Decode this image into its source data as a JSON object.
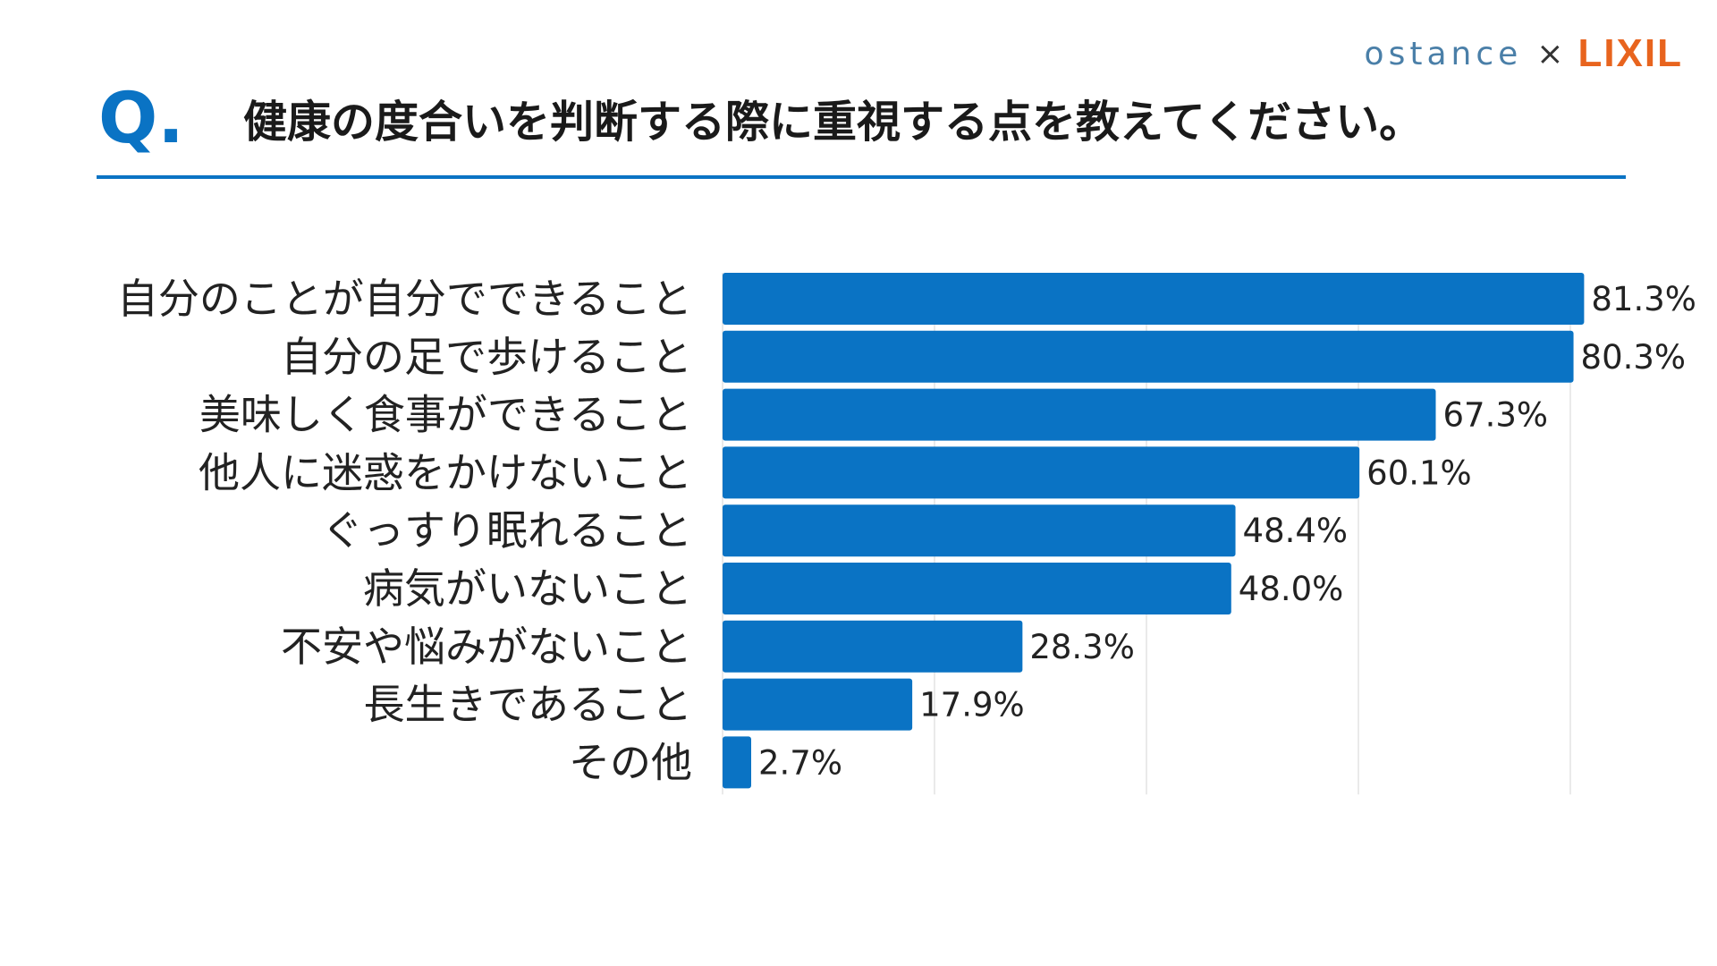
{
  "brand": {
    "ostance": "ostance",
    "separator": "×",
    "lixil": "LIXIL",
    "ostance_color": "#4a7fa8",
    "lixil_color": "#e8641e"
  },
  "header": {
    "q_mark": "Q.",
    "question": "健康の度合いを判断する際に重視する点を教えてください。",
    "accent_color": "#0a73c4"
  },
  "chart_data": {
    "type": "bar",
    "orientation": "horizontal",
    "title": "",
    "xlabel": "",
    "ylabel": "",
    "categories": [
      "自分のことが自分でできること",
      "自分の足で歩けること",
      "美味しく食事ができること",
      "他人に迷惑をかけないこと",
      "ぐっすり眠れること",
      "病気がいないこと",
      "不安や悩みがないこと",
      "長生きであること",
      "その他"
    ],
    "values": [
      81.3,
      80.3,
      67.3,
      60.1,
      48.4,
      48.0,
      28.3,
      17.9,
      2.7
    ],
    "value_labels": [
      "81.3%",
      "80.3%",
      "67.3%",
      "60.1%",
      "48.4%",
      "48.0%",
      "28.3%",
      "17.9%",
      "2.7%"
    ],
    "xlim": [
      0,
      100
    ],
    "grid": true,
    "bar_color": "#0a73c4"
  }
}
